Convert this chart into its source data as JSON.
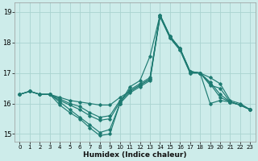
{
  "xlabel": "Humidex (Indice chaleur)",
  "background_color": "#cdecea",
  "grid_color": "#aad4d0",
  "line_color": "#1e7b72",
  "xlim": [
    -0.5,
    23.5
  ],
  "ylim": [
    14.75,
    19.3
  ],
  "yticks": [
    15,
    16,
    17,
    18,
    19
  ],
  "xticks": [
    0,
    1,
    2,
    3,
    4,
    5,
    6,
    7,
    8,
    9,
    10,
    11,
    12,
    13,
    14,
    15,
    16,
    17,
    18,
    19,
    20,
    21,
    22,
    23
  ],
  "lines": [
    {
      "x": [
        0,
        1,
        2,
        3,
        4,
        5,
        6,
        7,
        8,
        9,
        10,
        11,
        12,
        13,
        14,
        15,
        16,
        17,
        18,
        19,
        20,
        21,
        22,
        23
      ],
      "y": [
        16.3,
        16.4,
        16.3,
        16.3,
        16.05,
        15.8,
        15.55,
        15.3,
        15.05,
        15.15,
        16.0,
        16.55,
        16.75,
        17.55,
        18.9,
        18.2,
        17.8,
        17.05,
        17.0,
        16.0,
        16.1,
        16.05,
        15.95,
        15.8
      ]
    },
    {
      "x": [
        0,
        1,
        2,
        3,
        4,
        5,
        6,
        7,
        8,
        9,
        10,
        11,
        12,
        13,
        14,
        15,
        16,
        17,
        18,
        19,
        20,
        21,
        22,
        23
      ],
      "y": [
        16.3,
        16.4,
        16.3,
        16.3,
        16.2,
        16.1,
        16.05,
        16.0,
        15.95,
        15.95,
        16.2,
        16.4,
        16.6,
        16.8,
        18.9,
        18.2,
        17.8,
        17.05,
        17.0,
        16.85,
        16.65,
        16.1,
        16.0,
        15.8
      ]
    },
    {
      "x": [
        0,
        1,
        2,
        3,
        4,
        5,
        6,
        7,
        8,
        9,
        10,
        11,
        12,
        13,
        14,
        15,
        16,
        17,
        18,
        19,
        20,
        21,
        22,
        23
      ],
      "y": [
        16.3,
        16.4,
        16.3,
        16.3,
        16.15,
        16.0,
        15.9,
        15.7,
        15.55,
        15.6,
        16.1,
        16.45,
        16.65,
        16.85,
        18.9,
        18.2,
        17.8,
        17.05,
        17.0,
        16.7,
        16.3,
        16.05,
        15.95,
        15.8
      ]
    },
    {
      "x": [
        0,
        1,
        2,
        3,
        4,
        5,
        6,
        7,
        8,
        9,
        10,
        11,
        12,
        13,
        14,
        15,
        16,
        17,
        18,
        19,
        20,
        21,
        22,
        23
      ],
      "y": [
        16.3,
        16.4,
        16.3,
        16.3,
        16.1,
        15.95,
        15.8,
        15.6,
        15.45,
        15.5,
        16.05,
        16.4,
        16.6,
        16.8,
        18.85,
        18.15,
        17.75,
        17.0,
        17.0,
        16.65,
        16.2,
        16.05,
        15.95,
        15.8
      ]
    },
    {
      "x": [
        3,
        4,
        5,
        6,
        7,
        8,
        9,
        10,
        11,
        12,
        13,
        14,
        15,
        16,
        17,
        18,
        19,
        20,
        21,
        22,
        23
      ],
      "y": [
        16.3,
        15.95,
        15.7,
        15.5,
        15.2,
        14.95,
        15.0,
        16.0,
        16.35,
        16.55,
        16.75,
        18.85,
        18.15,
        17.75,
        17.0,
        17.0,
        16.6,
        16.5,
        16.05,
        15.95,
        15.8
      ]
    }
  ]
}
